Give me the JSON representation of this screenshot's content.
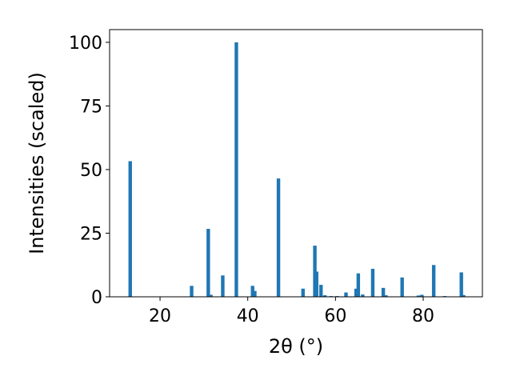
{
  "chart_data": {
    "type": "bar",
    "xlabel": "2θ (°)",
    "ylabel": "Intensities (scaled)",
    "xlim": [
      8.5,
      93.5
    ],
    "ylim": [
      0,
      105
    ],
    "xticks": [
      20,
      40,
      60,
      80
    ],
    "yticks": [
      0,
      25,
      50,
      75,
      100
    ],
    "bar_width": 0.8,
    "color": "#1f77b4",
    "x": [
      13.2,
      27.2,
      31.0,
      31.6,
      34.3,
      37.4,
      41.1,
      41.6,
      47.0,
      52.6,
      55.3,
      55.7,
      56.7,
      57.6,
      59.0,
      60.4,
      62.4,
      64.7,
      65.2,
      66.2,
      68.5,
      70.9,
      71.5,
      75.2,
      78.9,
      79.7,
      82.4,
      84.9,
      88.7,
      89.2
    ],
    "y": [
      53.3,
      4.3,
      26.7,
      0.8,
      8.4,
      100,
      4.3,
      2.3,
      46.5,
      3.2,
      20.1,
      9.9,
      4.7,
      0.6,
      0.3,
      0.3,
      1.7,
      3.2,
      9.2,
      0.9,
      11.0,
      3.5,
      0.6,
      7.6,
      0.5,
      0.8,
      12.5,
      0.3,
      9.6,
      0.7
    ]
  }
}
